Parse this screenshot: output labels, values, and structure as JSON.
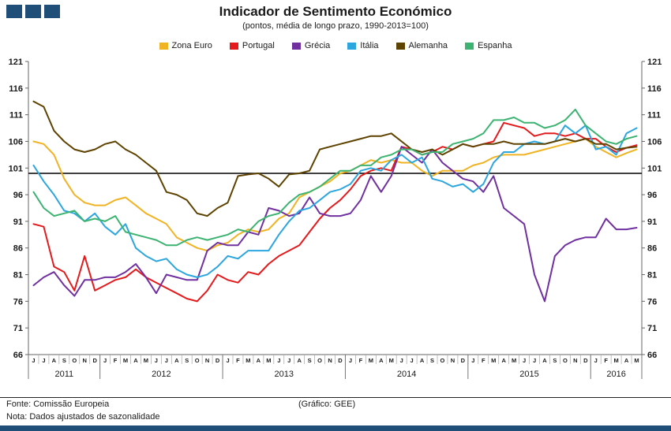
{
  "header": {
    "title": "Indicador de Sentimento Económico",
    "subtitle": "(pontos, média de longo prazo, 1990-2013=100)"
  },
  "footer": {
    "source": "Fonte: Comissão Europeia",
    "credit": "(Gráfico: GEE)",
    "note": "Nota: Dados ajustados de sazonalidade"
  },
  "colors": {
    "brand": "#1F4E79",
    "axis": "#666666",
    "reference_line": "#000000"
  },
  "chart_data": {
    "type": "line",
    "title": "Indicador de Sentimento Económico",
    "subtitle": "(pontos, média de longo prazo, 1990-2013=100)",
    "ylim": [
      66,
      121
    ],
    "yticks": [
      66,
      71,
      76,
      81,
      86,
      91,
      96,
      101,
      106,
      111,
      116,
      121
    ],
    "reference_line": 100,
    "grid": false,
    "legend_position": "top",
    "month_labels": [
      "J",
      "J",
      "A",
      "S",
      "O",
      "N",
      "D",
      "J",
      "F",
      "M",
      "A",
      "M",
      "J",
      "J",
      "A",
      "S",
      "O",
      "N",
      "D",
      "J",
      "F",
      "M",
      "A",
      "M",
      "J",
      "J",
      "A",
      "S",
      "O",
      "N",
      "D",
      "J",
      "F",
      "M",
      "A",
      "M",
      "J",
      "J",
      "A",
      "S",
      "O",
      "N",
      "D",
      "J",
      "F",
      "M",
      "A",
      "M",
      "J",
      "J",
      "A",
      "S",
      "O",
      "N",
      "D",
      "J",
      "F",
      "M",
      "A",
      "M"
    ],
    "year_groups": [
      {
        "label": "2011",
        "count": 7
      },
      {
        "label": "2012",
        "count": 12
      },
      {
        "label": "2013",
        "count": 12
      },
      {
        "label": "2014",
        "count": 12
      },
      {
        "label": "2015",
        "count": 12
      },
      {
        "label": "2016",
        "count": 5
      }
    ],
    "series": [
      {
        "name": "Zona Euro",
        "color": "#F0B323",
        "values": [
          106,
          105.5,
          103.5,
          99,
          96,
          94.5,
          94,
          94,
          95,
          95.5,
          94,
          92.5,
          91.5,
          90.5,
          88,
          87,
          86,
          85.5,
          86.5,
          87,
          88.5,
          89.5,
          89,
          89.5,
          91.5,
          92.5,
          95.5,
          96.5,
          97.5,
          98.5,
          100,
          100.5,
          101.5,
          102.5,
          102,
          102.5,
          102,
          102,
          100.5,
          99.5,
          100.5,
          100.5,
          100.5,
          101.5,
          102,
          103,
          103.5,
          103.5,
          103.5,
          104,
          104.5,
          105,
          105.5,
          106,
          106.5,
          105,
          104,
          103,
          103.8,
          104.5
        ]
      },
      {
        "name": "Portugal",
        "color": "#E41A1C",
        "values": [
          90.5,
          90,
          82.5,
          81.5,
          78,
          84.5,
          78,
          79,
          80,
          80.5,
          82,
          80.5,
          79.5,
          78.5,
          77.5,
          76.5,
          76,
          78,
          81,
          80,
          79.5,
          81.5,
          81,
          83,
          84.5,
          85.5,
          86.5,
          89,
          91.5,
          93.5,
          95,
          97,
          99.5,
          100.5,
          101,
          100.5,
          105,
          104.5,
          103.5,
          104,
          105,
          104.5,
          105.5,
          105,
          105.5,
          106,
          109.5,
          109,
          108.5,
          107,
          107.5,
          107.5,
          107,
          107.5,
          106.5,
          106.5,
          105,
          104,
          104.8,
          105.3
        ]
      },
      {
        "name": "Grécia",
        "color": "#7030A0",
        "values": [
          79,
          80.5,
          81.5,
          79,
          77,
          80,
          80,
          80.5,
          80.5,
          81.5,
          83,
          80.5,
          77.5,
          81,
          80.5,
          80,
          80,
          85.5,
          87,
          86.5,
          86.5,
          89,
          88.5,
          93.5,
          93,
          92,
          92.5,
          95.5,
          92.5,
          92,
          92,
          92.5,
          95,
          99.5,
          96.5,
          99.5,
          105,
          103.5,
          102,
          104.5,
          102,
          100.5,
          99,
          98.5,
          96.5,
          99.5,
          93.5,
          92,
          90.5,
          81,
          76,
          84.5,
          86.5,
          87.5,
          88,
          88,
          91.5,
          89.5,
          89.5,
          89.8
        ]
      },
      {
        "name": "Itália",
        "color": "#2BA6DE",
        "values": [
          101.5,
          98.5,
          96,
          93,
          92.5,
          91,
          92.5,
          90,
          88.5,
          90.5,
          86,
          84.5,
          83.5,
          84,
          82,
          81,
          80.5,
          81,
          82.5,
          84.5,
          84,
          85.5,
          85.5,
          85.5,
          88.5,
          91,
          93,
          93.5,
          95,
          96.5,
          97,
          98,
          100.5,
          101,
          100.5,
          102.5,
          103.5,
          102,
          103,
          99,
          98.5,
          97.5,
          98,
          96.5,
          98,
          102,
          104,
          104,
          105.5,
          106,
          105.5,
          106,
          109,
          107.5,
          109,
          104.5,
          105,
          103.5,
          107.5,
          108.5
        ]
      },
      {
        "name": "Alemanha",
        "color": "#5E4200",
        "values": [
          113.5,
          112.5,
          108,
          106,
          104.5,
          104,
          104.5,
          105.5,
          106,
          104.5,
          103.5,
          102,
          100.5,
          96.5,
          96,
          95,
          92.5,
          92,
          93.5,
          94.5,
          99.5,
          99.8,
          100,
          99,
          97.5,
          99.8,
          100,
          100.5,
          104.5,
          105,
          105.5,
          106,
          106.5,
          107,
          107,
          107.5,
          106,
          104.5,
          104,
          104.5,
          103.5,
          104.5,
          105.5,
          105,
          105.5,
          105.5,
          106,
          105.5,
          105.5,
          105.5,
          105.5,
          106,
          106.5,
          106,
          106.5,
          105.5,
          105.5,
          104.5,
          104.8,
          105
        ]
      },
      {
        "name": "Espanha",
        "color": "#3CB371",
        "values": [
          96.5,
          93.5,
          92,
          92.5,
          93,
          91,
          91.5,
          91,
          92,
          89,
          88.5,
          88,
          87.5,
          86.5,
          86.5,
          87.5,
          88,
          87.5,
          88,
          88.5,
          89.5,
          89,
          91,
          92,
          92.5,
          94.5,
          96,
          96.5,
          97.5,
          99,
          100.5,
          100.5,
          101.5,
          101.5,
          103,
          103.5,
          104.5,
          104.5,
          103.5,
          104,
          104,
          105.5,
          106,
          106.5,
          107.5,
          110,
          110,
          110.5,
          109.5,
          109.5,
          108.5,
          109,
          110,
          112,
          109,
          107.5,
          106,
          105.5,
          106.5,
          107
        ]
      }
    ]
  }
}
